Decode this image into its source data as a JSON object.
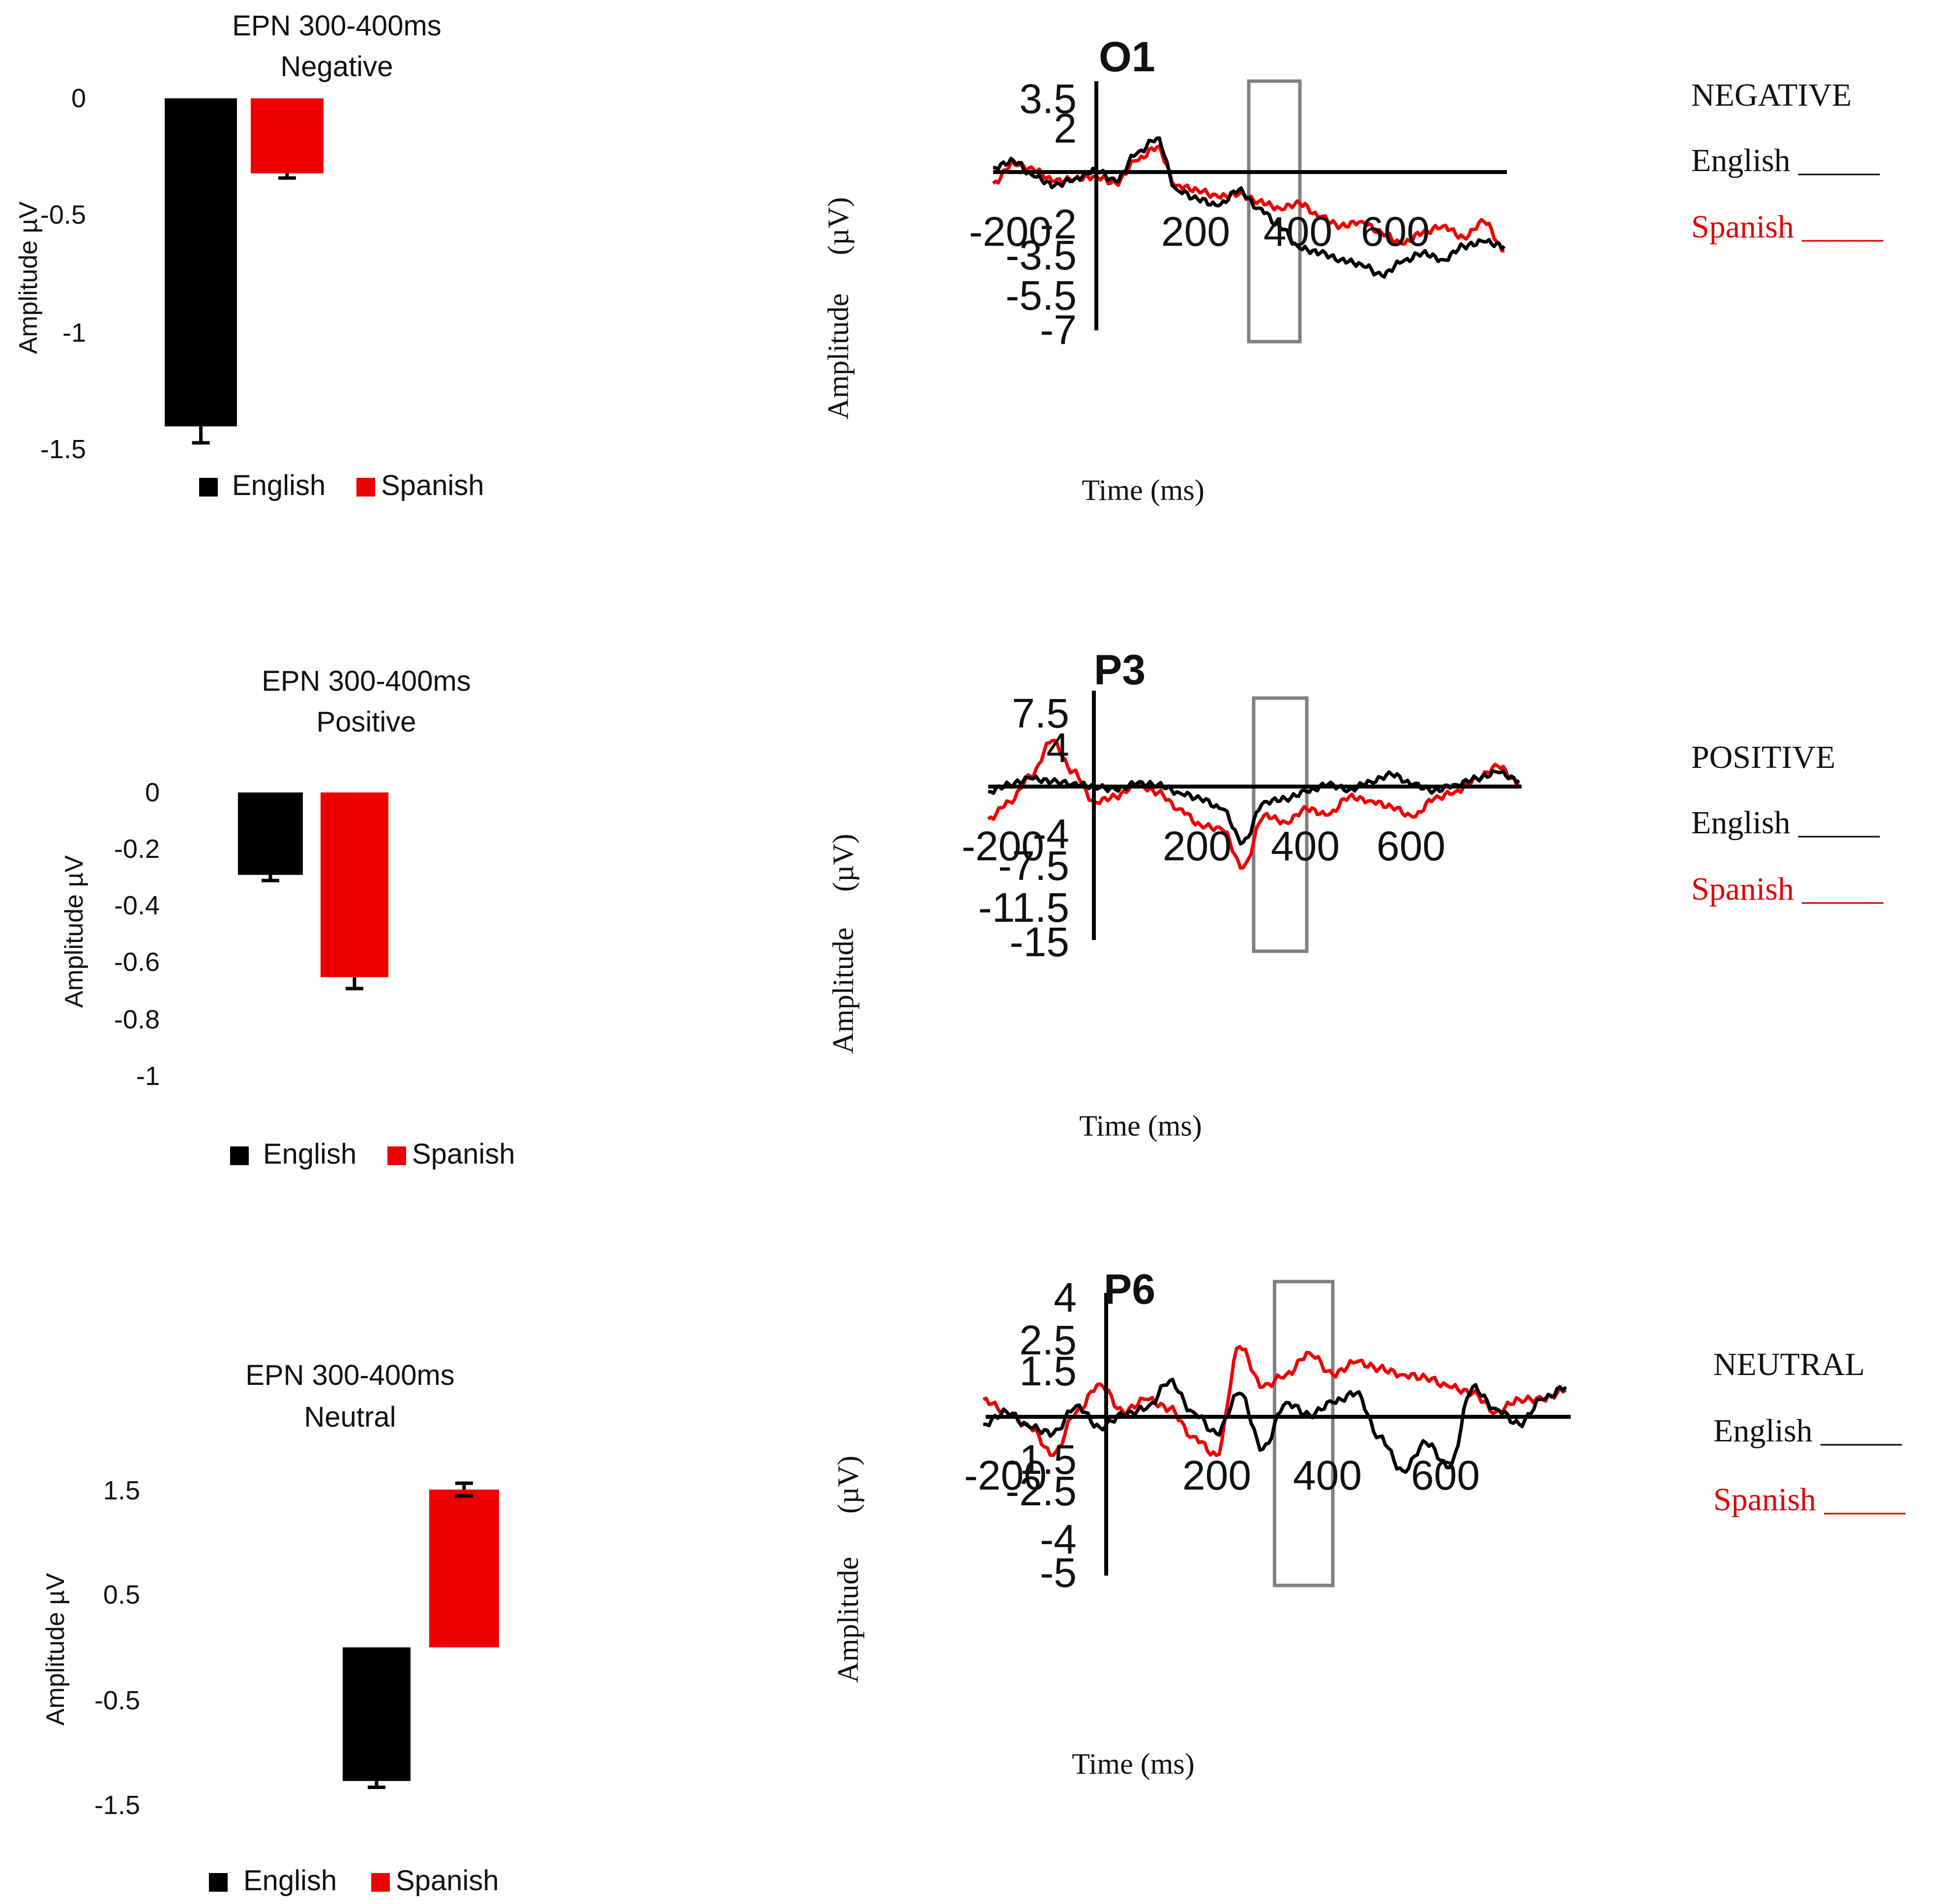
{
  "colors": {
    "english": "#000000",
    "spanish": "#ee0000",
    "window": "#808080"
  },
  "chart_data": [
    {
      "type": "bar",
      "title": [
        "EPN 300-400ms",
        "Negative"
      ],
      "ylabel": "Amplitude µV",
      "ylim": [
        -1.5,
        0
      ],
      "yticks": [
        "0",
        "-0.5",
        "-1",
        "-1.5"
      ],
      "ytick_values": [
        0,
        -0.5,
        -1,
        -1.5
      ],
      "categories": [
        "English",
        "Spanish"
      ],
      "values": [
        -1.4,
        -0.32
      ],
      "errors": [
        0.07,
        0.02
      ],
      "legend": [
        "English",
        "Spanish"
      ]
    },
    {
      "type": "bar",
      "title": [
        "EPN 300-400ms",
        "Positive"
      ],
      "ylabel": "Amplitude µV",
      "ylim": [
        -1,
        0
      ],
      "yticks": [
        "0",
        "-0.2",
        "-0.4",
        "-0.6",
        "-0.8",
        "-1"
      ],
      "ytick_values": [
        0,
        -0.2,
        -0.4,
        -0.6,
        -0.8,
        -1
      ],
      "categories": [
        "English",
        "Spanish"
      ],
      "values": [
        -0.29,
        -0.65
      ],
      "errors": [
        0.02,
        0.04
      ],
      "legend": [
        "English",
        "Spanish"
      ]
    },
    {
      "type": "bar",
      "title": [
        "EPN 300-400ms",
        "Neutral"
      ],
      "ylabel": "Amplitude µV",
      "ylim": [
        -1.5,
        1.5
      ],
      "yticks": [
        "1.5",
        "0.5",
        "-0.5",
        "-1.5"
      ],
      "ytick_values": [
        1.5,
        0.5,
        -0.5,
        -1.5
      ],
      "categories": [
        "English",
        "Spanish"
      ],
      "values": [
        -1.27,
        1.5
      ],
      "errors": [
        0.06,
        0.06
      ],
      "legend": [
        "English",
        "Spanish"
      ]
    },
    {
      "type": "line",
      "channel": "O1",
      "xlabel": "Time (ms)",
      "ylabel": [
        "Amplitude",
        "(µV)"
      ],
      "xticks": [
        "-200",
        "200",
        "400",
        "600"
      ],
      "xtick_values": [
        -200,
        200,
        400,
        600
      ],
      "yticks": [
        "3.5",
        "2",
        "-2",
        "-3.5",
        "-5.5",
        "-7"
      ],
      "ytick_values": [
        3.5,
        2,
        -2,
        -3.5,
        -5.5,
        -7
      ],
      "xlim": [
        -200,
        800
      ],
      "ylim": [
        -7,
        3.5
      ],
      "window": [
        300,
        400
      ],
      "condition": {
        "label": "NEGATIVE",
        "english": "English _____",
        "spanish": "Spanish _____"
      },
      "series": [
        {
          "name": "English",
          "x": [
            -200,
            -160,
            -120,
            -80,
            -40,
            0,
            40,
            80,
            120,
            160,
            200,
            240,
            280,
            320,
            360,
            400,
            440,
            480,
            520,
            560,
            600,
            640,
            680,
            720,
            760,
            800
          ],
          "values": [
            0.2,
            0.5,
            -0.2,
            -0.6,
            -0.3,
            0.1,
            -0.4,
            0.8,
            1.5,
            -0.8,
            -1.2,
            -1.5,
            -0.8,
            -1.6,
            -2.4,
            -3.4,
            -3.6,
            -3.9,
            -4.1,
            -4.6,
            -4.0,
            -3.6,
            -3.9,
            -3.3,
            -3.1,
            -3.3
          ]
        },
        {
          "name": "Spanish",
          "x": [
            -200,
            -160,
            -120,
            -80,
            -40,
            0,
            40,
            80,
            120,
            160,
            200,
            240,
            280,
            320,
            360,
            400,
            440,
            480,
            520,
            560,
            600,
            640,
            680,
            720,
            760,
            800
          ],
          "values": [
            -0.5,
            0.4,
            0.1,
            -0.4,
            -0.3,
            -0.2,
            -0.5,
            0.5,
            1.1,
            -0.6,
            -0.8,
            -1.1,
            -1.0,
            -1.3,
            -1.6,
            -1.4,
            -2.0,
            -2.4,
            -2.2,
            -2.7,
            -3.2,
            -2.7,
            -2.4,
            -2.9,
            -2.2,
            -3.5
          ]
        }
      ]
    },
    {
      "type": "line",
      "channel": "P3",
      "xlabel": "Time (ms)",
      "ylabel": [
        "Amplitude",
        "(µV)"
      ],
      "xticks": [
        "-200",
        "200",
        "400",
        "600"
      ],
      "xtick_values": [
        -200,
        200,
        400,
        600
      ],
      "yticks": [
        "7.5",
        "4",
        "-4",
        "-7.5",
        "-11.5",
        "-15"
      ],
      "ytick_values": [
        7.5,
        4,
        -4,
        -7.5,
        -11.5,
        -15
      ],
      "xlim": [
        -200,
        800
      ],
      "ylim": [
        -15,
        7.5
      ],
      "window": [
        300,
        400
      ],
      "condition": {
        "label": "POSITIVE",
        "english": "English _____",
        "spanish": "Spanish _____"
      },
      "series": [
        {
          "name": "English",
          "x": [
            -200,
            -160,
            -120,
            -80,
            -40,
            0,
            40,
            80,
            120,
            160,
            200,
            240,
            280,
            320,
            360,
            400,
            440,
            480,
            520,
            560,
            600,
            640,
            680,
            720,
            760,
            800
          ],
          "values": [
            -0.5,
            0.2,
            0.8,
            0.5,
            0.3,
            0,
            -0.3,
            0.3,
            0.2,
            -0.6,
            -1.2,
            -2.2,
            -5.5,
            -1.5,
            -1.2,
            -0.5,
            0.2,
            -0.3,
            0.5,
            1.2,
            0.2,
            -0.4,
            0.2,
            0.8,
            1.4,
            0.6
          ]
        },
        {
          "name": "Spanish",
          "x": [
            -200,
            -160,
            -120,
            -80,
            -40,
            0,
            40,
            80,
            120,
            160,
            200,
            240,
            280,
            320,
            360,
            400,
            440,
            480,
            520,
            560,
            600,
            640,
            680,
            720,
            760,
            800
          ],
          "values": [
            -3.2,
            -1.5,
            1.0,
            4.5,
            1.5,
            -1.5,
            -1.0,
            0.2,
            -0.6,
            -2.2,
            -3.8,
            -4.2,
            -8.0,
            -2.8,
            -3.5,
            -2.2,
            -2.8,
            -1.0,
            -1.4,
            -2.0,
            -3.0,
            -1.2,
            -0.5,
            0.8,
            2.0,
            0.3
          ]
        }
      ]
    },
    {
      "type": "line",
      "channel": "P6",
      "xlabel": "Time (ms)",
      "ylabel": [
        "Amplitude",
        "(µV)"
      ],
      "xticks": [
        "-200",
        "200",
        "400",
        "600"
      ],
      "xtick_values": [
        -200,
        200,
        400,
        600
      ],
      "yticks": [
        "4",
        "2.5",
        "1.5",
        "-1.5",
        "-2.5",
        "-4",
        "-5"
      ],
      "ytick_values": [
        4,
        2.5,
        1.5,
        -1.5,
        -2.5,
        -4,
        -5
      ],
      "xlim": [
        -200,
        800
      ],
      "ylim": [
        -5,
        4
      ],
      "window": [
        300,
        400
      ],
      "condition": {
        "label": "NEUTRAL",
        "english": "English _____",
        "spanish": "Spanish _____"
      },
      "series": [
        {
          "name": "English",
          "x": [
            -200,
            -160,
            -120,
            -80,
            -40,
            0,
            40,
            80,
            120,
            160,
            200,
            240,
            280,
            320,
            360,
            400,
            440,
            480,
            520,
            560,
            600,
            640,
            680,
            720,
            760,
            800
          ],
          "values": [
            -0.2,
            0.2,
            -0.3,
            -0.5,
            0.4,
            -0.3,
            0.1,
            0.3,
            1.2,
            0.2,
            -0.5,
            0.8,
            -1.0,
            0.5,
            0.1,
            0.5,
            0.8,
            -0.6,
            -1.7,
            -0.8,
            -1.6,
            1.0,
            0.3,
            -0.2,
            0.6,
            1.0
          ]
        },
        {
          "name": "Spanish",
          "x": [
            -200,
            -160,
            -120,
            -80,
            -40,
            0,
            40,
            80,
            120,
            160,
            200,
            240,
            280,
            320,
            360,
            400,
            440,
            480,
            520,
            560,
            600,
            640,
            680,
            720,
            760,
            800
          ],
          "values": [
            0.6,
            0.2,
            -0.3,
            -1.2,
            0.2,
            1.1,
            0.2,
            0.6,
            0.3,
            -0.6,
            -1.2,
            2.3,
            1.0,
            1.4,
            2.1,
            1.4,
            1.8,
            1.6,
            1.4,
            1.3,
            1.0,
            0.8,
            0.2,
            0.6,
            0.6,
            0.9
          ]
        }
      ]
    }
  ]
}
